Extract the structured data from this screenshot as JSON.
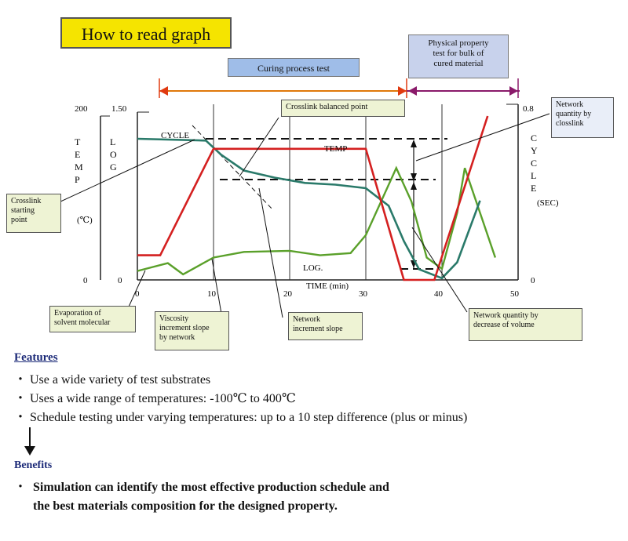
{
  "header": {
    "title": "How to read graph"
  },
  "banners": {
    "curing": "Curing process test",
    "physical_lines": [
      "Physical property",
      "test for bulk of",
      "cured material"
    ]
  },
  "axes": {
    "left_temp_max": "200",
    "left_temp_zero": "0",
    "left_log_max": "1.50",
    "left_log_zero": "0",
    "left_temp_label": [
      "T",
      "E",
      "M",
      "P"
    ],
    "left_log_label": [
      "L",
      "O",
      "G"
    ],
    "left_unit": "(℃)",
    "right_max": "0.8",
    "right_zero": "0",
    "right_label": [
      "C",
      "Y",
      "C",
      "L",
      "E"
    ],
    "right_unit": "(SEC)",
    "x_ticks": [
      "0",
      "10",
      "20",
      "30",
      "40",
      "50"
    ],
    "x_label": "TIME  (min)"
  },
  "series_labels": {
    "cycle": "CYCLE",
    "temp": "TEMP",
    "log": "LOG."
  },
  "annotations": {
    "crosslink_balanced": "Crosslink balanced point",
    "network_quantity": [
      "Network",
      "quantity by",
      "closslink"
    ],
    "crosslink_start": [
      "Crosslink",
      "starting",
      "point"
    ],
    "evaporation": [
      "Evaporation of",
      "solvent molecular"
    ],
    "viscosity": [
      "Viscosity",
      "increment slope",
      "by network"
    ],
    "network_increment": [
      "Network",
      "increment slope"
    ],
    "network_decrease": [
      "Network quantity by",
      "decrease of volume"
    ]
  },
  "features": {
    "heading": "Features",
    "items": [
      "Use a wide variety of test substrates",
      "Uses a wide range of temperatures:  -100℃  to 400℃",
      "Schedule testing under varying temperatures: up to a 10 step difference (plus or minus)"
    ],
    "bullet": "・"
  },
  "benefits": {
    "heading": "Benefits",
    "bullet": "・",
    "lines": [
      "Simulation can identify the most effective  production schedule and",
      "the best materials composition for the designed property."
    ]
  },
  "colors": {
    "temp": "#d42020",
    "cycle": "#2a7a6a",
    "log": "#5aa02a",
    "accent_red": "#e03a10",
    "banner_yellow": "#f5e400"
  },
  "chart_data": {
    "type": "line",
    "xlabel": "TIME  (min)",
    "xlim": [
      0,
      50
    ],
    "series": [
      {
        "name": "TEMP",
        "axis": "left (℃)",
        "x": [
          0,
          3,
          10,
          30,
          35,
          39,
          46
        ],
        "y": [
          30,
          30,
          160,
          160,
          0,
          0,
          200
        ]
      },
      {
        "name": "CYCLE",
        "axis": "right (SEC)",
        "x": [
          0,
          9,
          11,
          14,
          18,
          22,
          26,
          30,
          33,
          35,
          37,
          40,
          42,
          45
        ],
        "y": [
          0.8,
          0.79,
          0.71,
          0.62,
          0.58,
          0.55,
          0.54,
          0.52,
          0.42,
          0.22,
          0.06,
          0.01,
          0.1,
          0.45
        ]
      },
      {
        "name": "LOG.",
        "axis": "left LOG",
        "x": [
          0,
          4,
          6,
          10,
          14,
          20,
          24,
          28,
          30,
          32,
          34,
          36,
          38,
          40,
          42,
          43,
          45,
          47
        ],
        "y": [
          0.08,
          0.15,
          0.05,
          0.2,
          0.25,
          0.26,
          0.22,
          0.24,
          0.4,
          0.7,
          1.0,
          0.7,
          0.2,
          0.1,
          0.6,
          1.0,
          0.6,
          0.2
        ]
      }
    ]
  }
}
